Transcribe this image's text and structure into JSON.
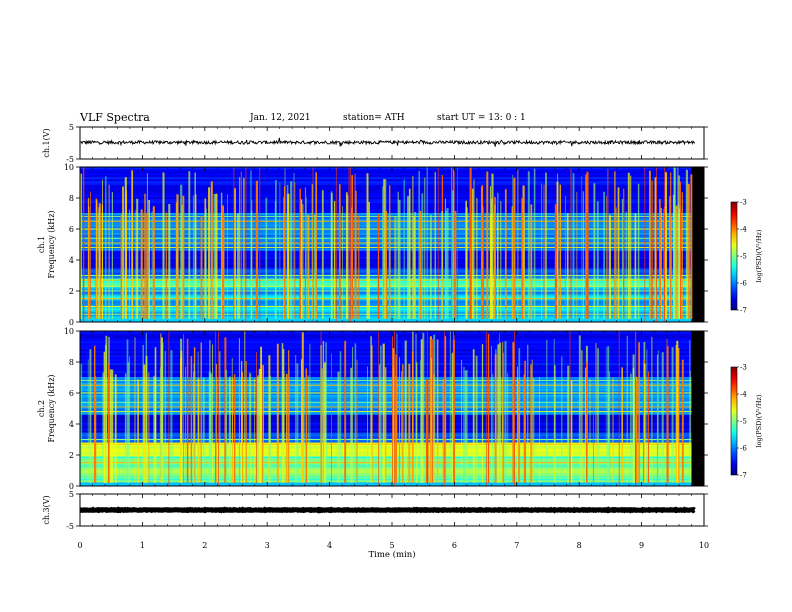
{
  "header": {
    "title": "VLF Spectra",
    "date": "Jan. 12, 2021",
    "station": "station= ATH",
    "start": "start  UT  =   13: 0   : 1"
  },
  "chart_data": [
    {
      "type": "line",
      "panel": "ch1-waveform",
      "ylabel": "ch.1(V)",
      "ylim": [
        -5,
        5
      ],
      "yticks": [
        "5",
        "-5"
      ],
      "xlim": [
        0,
        10
      ],
      "series": [
        {
          "level": 0.2,
          "noise_amplitude": 0.5
        }
      ]
    },
    {
      "type": "heatmap",
      "panel": "ch1-spectrogram",
      "ylabel": "ch.1\nFrequency (kHz)",
      "ylim": [
        0,
        10
      ],
      "yticks": [
        "0",
        "2",
        "4",
        "6",
        "8",
        "10"
      ],
      "xlim": [
        0,
        10
      ],
      "data_end_minute": 9.8,
      "colorbar": {
        "label": "log(PSD)(V²/Hz)",
        "range": [
          -7,
          -3
        ],
        "ticks": [
          "-3",
          "-4",
          "-5",
          "-6",
          "-7"
        ]
      }
    },
    {
      "type": "heatmap",
      "panel": "ch2-spectrogram",
      "ylabel": "ch.2\nFrequency (kHz)",
      "ylim": [
        0,
        10
      ],
      "yticks": [
        "0",
        "2",
        "4",
        "6",
        "8",
        "10"
      ],
      "xlim": [
        0,
        10
      ],
      "data_end_minute": 9.8,
      "colorbar": {
        "label": "log(PSD)(V²/Hz)",
        "range": [
          -7,
          -3
        ],
        "ticks": [
          "-3",
          "-4",
          "-5",
          "-6",
          "-7"
        ]
      }
    },
    {
      "type": "line",
      "panel": "ch3-waveform",
      "ylabel": "ch.3(V)",
      "ylim": [
        -5,
        5
      ],
      "yticks": [
        "5",
        "-5"
      ],
      "xlim": [
        0,
        10
      ],
      "series": [
        {
          "level": 0,
          "noise_amplitude": 0.1
        }
      ]
    }
  ],
  "xaxis": {
    "label": "Time  (min)",
    "ticks": [
      "0",
      "1",
      "2",
      "3",
      "4",
      "5",
      "6",
      "7",
      "8",
      "9",
      "10"
    ]
  }
}
